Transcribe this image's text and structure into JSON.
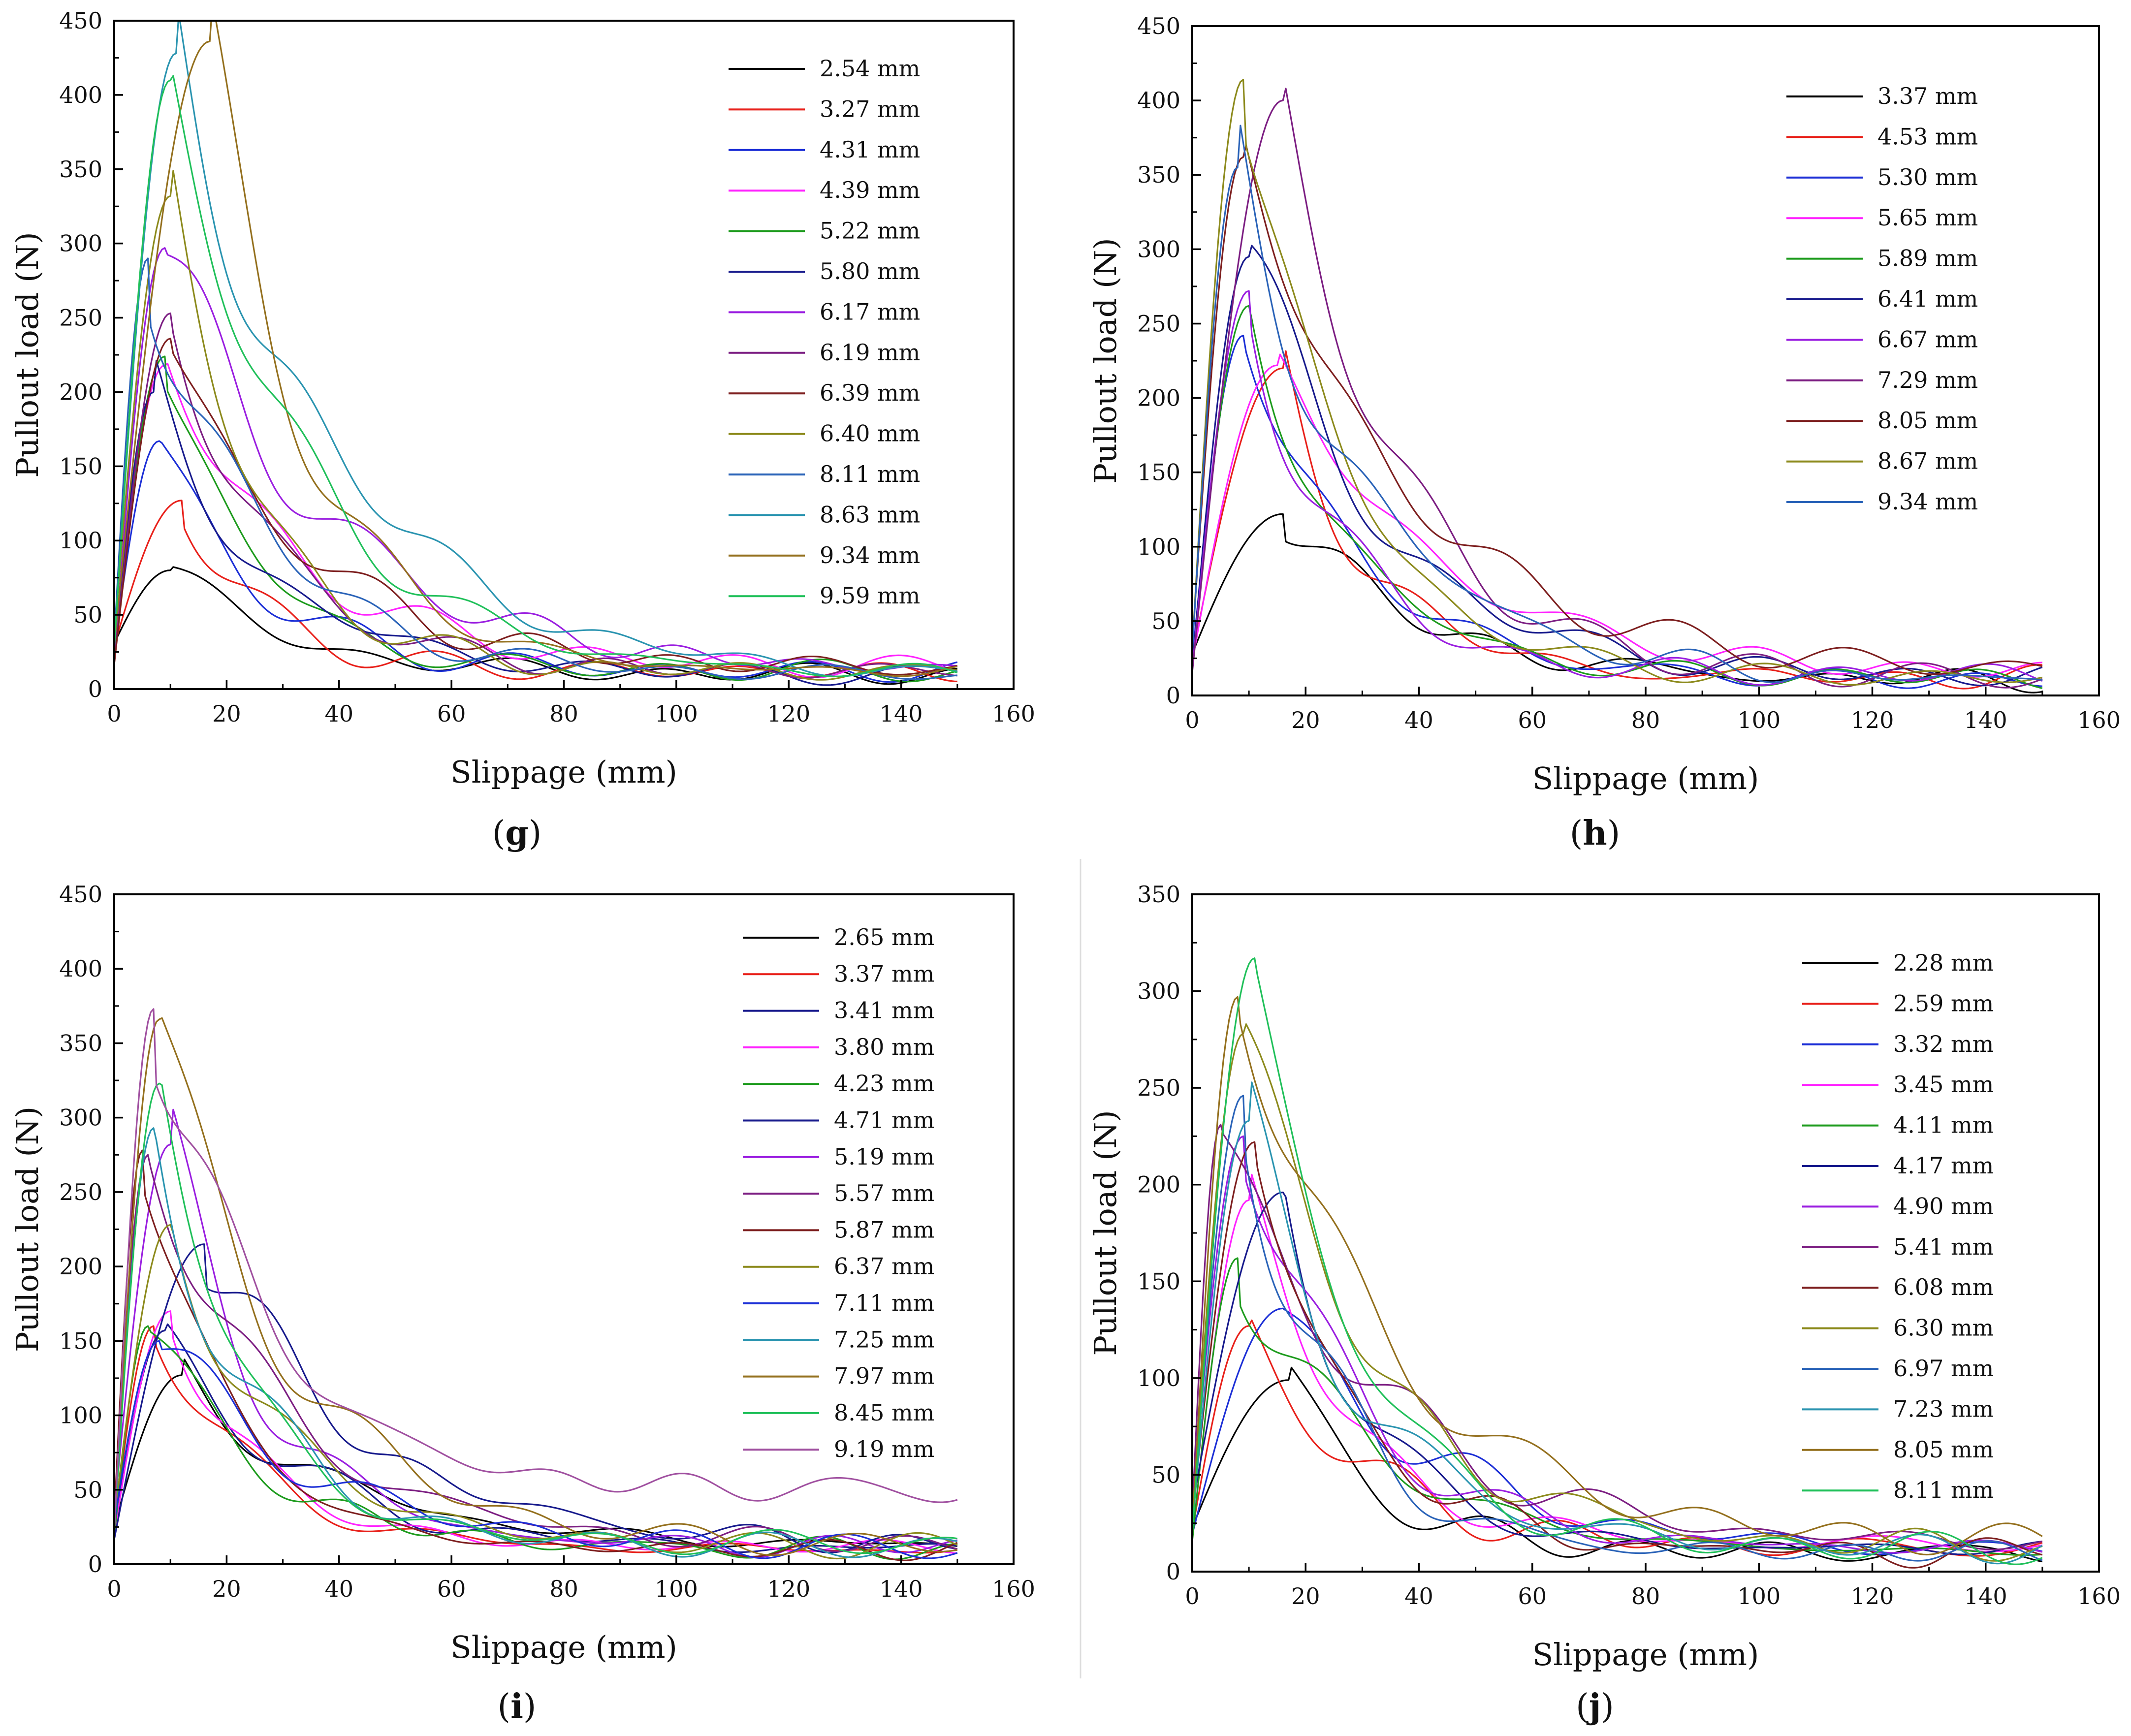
{
  "colors": {
    "palette": [
      "#000000",
      "#e8201a",
      "#1c2fd6",
      "#ff22ff",
      "#1d9b1d",
      "#171a8c",
      "#9a1ee0",
      "#7c1e82",
      "#7d1f1f",
      "#8c8a1c",
      "#2a63b8",
      "#2a94b0",
      "#94701e",
      "#20c05a",
      "#a050a0"
    ]
  },
  "chart_data": [
    {
      "type": "line",
      "panel_label": "g",
      "xlabel": "Slippage (mm)",
      "ylabel": "Pullout load (N)",
      "xlim": [
        0,
        160
      ],
      "ylim": [
        0,
        450
      ],
      "xticks": [
        "0",
        "20",
        "40",
        "60",
        "80",
        "100",
        "120",
        "140",
        "160"
      ],
      "yticks": [
        "0",
        "50",
        "100",
        "150",
        "200",
        "250",
        "300",
        "350",
        "400",
        "450"
      ],
      "series": [
        {
          "name": "2.54 mm",
          "color_index": 0,
          "peak": [
            10,
            80
          ],
          "end": 10
        },
        {
          "name": "3.27 mm",
          "color_index": 1,
          "peak": [
            12,
            127
          ],
          "end": 12
        },
        {
          "name": "4.31 mm",
          "color_index": 2,
          "peak": [
            8,
            167
          ],
          "end": 12
        },
        {
          "name": "4.39 mm",
          "color_index": 3,
          "peak": [
            9,
            218
          ],
          "end": 14
        },
        {
          "name": "5.22 mm",
          "color_index": 4,
          "peak": [
            9,
            224
          ],
          "end": 12
        },
        {
          "name": "5.80 mm",
          "color_index": 5,
          "peak": [
            7,
            200
          ],
          "end": 10
        },
        {
          "name": "6.17 mm",
          "color_index": 6,
          "peak": [
            9,
            297
          ],
          "end": 12
        },
        {
          "name": "6.19 mm",
          "color_index": 7,
          "peak": [
            10,
            253
          ],
          "end": 12
        },
        {
          "name": "6.39 mm",
          "color_index": 8,
          "peak": [
            10,
            236
          ],
          "end": 14
        },
        {
          "name": "6.40 mm",
          "color_index": 9,
          "peak": [
            10,
            332
          ],
          "end": 12
        },
        {
          "name": "8.11 mm",
          "color_index": 10,
          "peak": [
            6,
            290
          ],
          "end": 10
        },
        {
          "name": "8.63 mm",
          "color_index": 11,
          "peak": [
            11,
            428
          ],
          "end": 8
        },
        {
          "name": "9.34 mm",
          "color_index": 12,
          "peak": [
            17,
            436
          ],
          "end": 12
        },
        {
          "name": "9.59 mm",
          "color_index": 13,
          "peak": [
            10,
            410
          ],
          "end": 10
        }
      ]
    },
    {
      "type": "line",
      "panel_label": "h",
      "xlabel": "Slippage (mm)",
      "ylabel": "Pullout load (N)",
      "xlim": [
        0,
        160
      ],
      "ylim": [
        0,
        450
      ],
      "xticks": [
        "0",
        "20",
        "40",
        "60",
        "80",
        "100",
        "120",
        "140",
        "160"
      ],
      "yticks": [
        "0",
        "50",
        "100",
        "150",
        "200",
        "250",
        "300",
        "350",
        "400",
        "450"
      ],
      "series": [
        {
          "name": "3.37 mm",
          "color_index": 0,
          "peak": [
            16,
            122
          ],
          "end": 10
        },
        {
          "name": "4.53 mm",
          "color_index": 1,
          "peak": [
            16,
            220
          ],
          "end": 12
        },
        {
          "name": "5.30 mm",
          "color_index": 2,
          "peak": [
            9,
            242
          ],
          "end": 10
        },
        {
          "name": "5.65 mm",
          "color_index": 3,
          "peak": [
            15,
            222
          ],
          "end": 14
        },
        {
          "name": "5.89 mm",
          "color_index": 4,
          "peak": [
            10,
            262
          ],
          "end": 12
        },
        {
          "name": "6.41 mm",
          "color_index": 5,
          "peak": [
            10,
            295
          ],
          "end": 12
        },
        {
          "name": "6.67 mm",
          "color_index": 6,
          "peak": [
            10,
            272
          ],
          "end": 14
        },
        {
          "name": "7.29 mm",
          "color_index": 7,
          "peak": [
            16,
            400
          ],
          "end": 12
        },
        {
          "name": "8.05 mm",
          "color_index": 8,
          "peak": [
            9,
            362
          ],
          "end": 16
        },
        {
          "name": "8.67 mm",
          "color_index": 9,
          "peak": [
            9,
            414
          ],
          "end": 12
        },
        {
          "name": "9.34 mm",
          "color_index": 10,
          "peak": [
            8,
            355
          ],
          "end": 10
        }
      ]
    },
    {
      "type": "line",
      "panel_label": "i",
      "xlabel": "Slippage (mm)",
      "ylabel": "Pullout load (N)",
      "xlim": [
        0,
        160
      ],
      "ylim": [
        0,
        450
      ],
      "xticks": [
        "0",
        "20",
        "40",
        "60",
        "80",
        "100",
        "120",
        "140",
        "160"
      ],
      "yticks": [
        "0",
        "50",
        "100",
        "150",
        "200",
        "250",
        "300",
        "350",
        "400",
        "450"
      ],
      "series": [
        {
          "name": "2.65 mm",
          "color_index": 0,
          "peak": [
            12,
            127
          ],
          "end": 12
        },
        {
          "name": "3.37 mm",
          "color_index": 1,
          "peak": [
            7,
            160
          ],
          "end": 10
        },
        {
          "name": "3.41 mm",
          "color_index": 5,
          "peak": [
            9,
            157
          ],
          "end": 10
        },
        {
          "name": "3.80 mm",
          "color_index": 3,
          "peak": [
            10,
            170
          ],
          "end": 12
        },
        {
          "name": "4.23 mm",
          "color_index": 4,
          "peak": [
            6,
            160
          ],
          "end": 10
        },
        {
          "name": "4.71 mm",
          "color_index": 5,
          "peak": [
            16,
            215
          ],
          "end": 12
        },
        {
          "name": "5.19 mm",
          "color_index": 6,
          "peak": [
            10,
            282
          ],
          "end": 12
        },
        {
          "name": "5.57 mm",
          "color_index": 7,
          "peak": [
            6,
            275
          ],
          "end": 14
        },
        {
          "name": "5.87 mm",
          "color_index": 8,
          "peak": [
            5,
            278
          ],
          "end": 10
        },
        {
          "name": "6.37 mm",
          "color_index": 9,
          "peak": [
            10,
            228
          ],
          "end": 12
        },
        {
          "name": "7.11 mm",
          "color_index": 2,
          "peak": [
            8,
            150
          ],
          "end": 10
        },
        {
          "name": "7.25 mm",
          "color_index": 11,
          "peak": [
            7,
            293
          ],
          "end": 12
        },
        {
          "name": "7.97 mm",
          "color_index": 12,
          "peak": [
            8,
            366
          ],
          "end": 12
        },
        {
          "name": "8.45 mm",
          "color_index": 13,
          "peak": [
            8,
            323
          ],
          "end": 14
        },
        {
          "name": "9.19 mm",
          "color_index": 14,
          "peak": [
            7,
            373
          ],
          "end": 50
        }
      ]
    },
    {
      "type": "line",
      "panel_label": "j",
      "xlabel": "Slippage (mm)",
      "ylabel": "Pullout load (N)",
      "xlim": [
        0,
        160
      ],
      "ylim": [
        0,
        350
      ],
      "xticks": [
        "0",
        "20",
        "40",
        "60",
        "80",
        "100",
        "120",
        "140",
        "160"
      ],
      "yticks": [
        "0",
        "50",
        "100",
        "150",
        "200",
        "250",
        "300",
        "350"
      ],
      "series": [
        {
          "name": "2.28 mm",
          "color_index": 0,
          "peak": [
            17,
            99
          ],
          "end": 10
        },
        {
          "name": "2.59 mm",
          "color_index": 1,
          "peak": [
            10,
            127
          ],
          "end": 12
        },
        {
          "name": "3.32 mm",
          "color_index": 2,
          "peak": [
            16,
            136
          ],
          "end": 10
        },
        {
          "name": "3.45 mm",
          "color_index": 3,
          "peak": [
            10,
            192
          ],
          "end": 14
        },
        {
          "name": "4.11 mm",
          "color_index": 4,
          "peak": [
            8,
            162
          ],
          "end": 10
        },
        {
          "name": "4.17 mm",
          "color_index": 5,
          "peak": [
            16,
            196
          ],
          "end": 12
        },
        {
          "name": "4.90 mm",
          "color_index": 6,
          "peak": [
            9,
            225
          ],
          "end": 12
        },
        {
          "name": "5.41 mm",
          "color_index": 7,
          "peak": [
            5,
            231
          ],
          "end": 14
        },
        {
          "name": "6.08 mm",
          "color_index": 8,
          "peak": [
            11,
            222
          ],
          "end": 10
        },
        {
          "name": "6.30 mm",
          "color_index": 9,
          "peak": [
            9,
            278
          ],
          "end": 12
        },
        {
          "name": "6.97 mm",
          "color_index": 10,
          "peak": [
            9,
            246
          ],
          "end": 10
        },
        {
          "name": "7.23 mm",
          "color_index": 11,
          "peak": [
            10,
            233
          ],
          "end": 12
        },
        {
          "name": "8.05 mm",
          "color_index": 12,
          "peak": [
            8,
            297
          ],
          "end": 14
        },
        {
          "name": "8.11 mm",
          "color_index": 13,
          "peak": [
            11,
            317
          ],
          "end": 12
        }
      ]
    }
  ]
}
